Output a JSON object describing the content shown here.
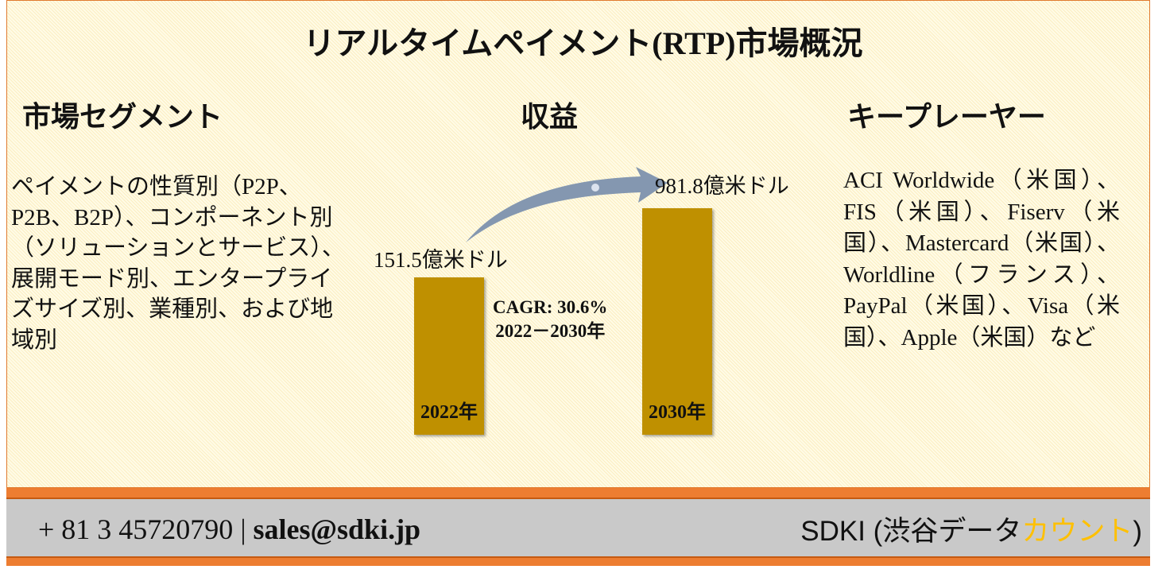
{
  "title": "リアルタイムペイメント(RTP)市場概況",
  "segments": {
    "heading": "市場セグメント",
    "text": "ペイメントの性質別（P2P、P2B、B2P）、コンポーネント別（ソリューションとサービス）、展開モード別、エンタープライズサイズ別、業種別、および地域別"
  },
  "revenue": {
    "heading": "収益",
    "start_value": "151.5億米ドル",
    "end_value": "981.8億米ドル",
    "start_year": "2022年",
    "end_year": "2030年",
    "cagr": "CAGR: 30.6%",
    "period": "2022－2030年",
    "bar_color": "#bf9000",
    "arrow_color": "#8497b0"
  },
  "players": {
    "heading": "キープレーヤー",
    "text": "ACI Worldwide（米国）、FIS（米国）、Fiserv（米国）、Mastercard（米国）、Worldline（フランス）、PayPal（米国）、Visa（米国）、Apple（米国）など"
  },
  "footer": {
    "phone": "+ 81 3 45720790",
    "separator": "|",
    "email": "sales@sdki.jp",
    "brand_main": "SDKI (渋谷データ",
    "brand_accent": "カウント",
    "brand_close": ")",
    "accent_color": "#ffc000"
  }
}
